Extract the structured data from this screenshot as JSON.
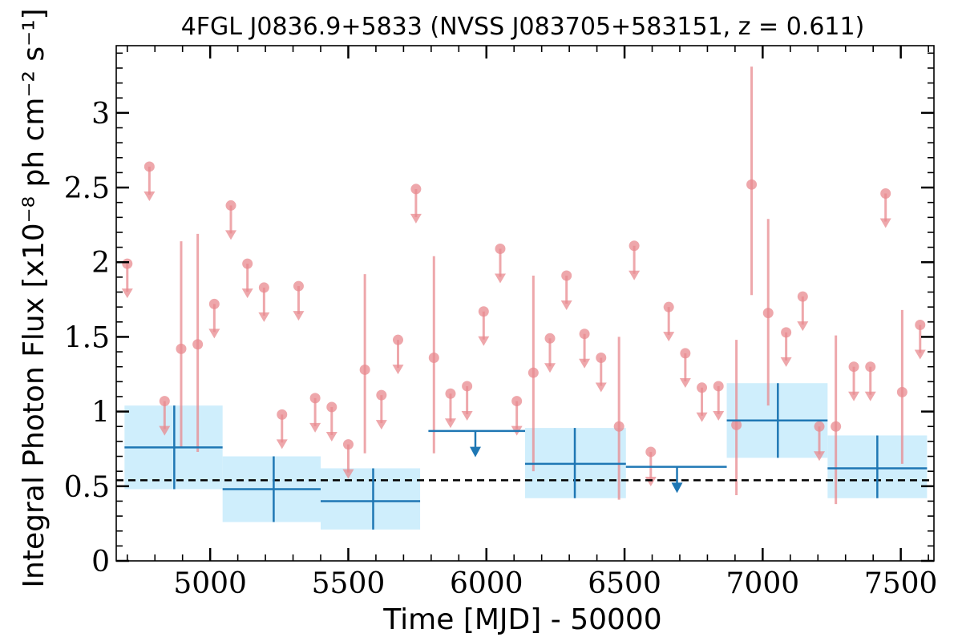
{
  "chart_data": {
    "type": "scatter",
    "title": "4FGL J0836.9+5833 (NVSS J083705+583151, z = 0.611)",
    "xlabel": "Time [MJD] - 50000",
    "ylabel": "Integral Photon Flux [x10⁻⁸ ph cm⁻² s⁻¹]",
    "xlim": [
      4660,
      7620
    ],
    "ylim": [
      0,
      3.45
    ],
    "x_ticks": [
      {
        "value": 5000,
        "label": "5000"
      },
      {
        "value": 5500,
        "label": "5500"
      },
      {
        "value": 6000,
        "label": "6000"
      },
      {
        "value": 6500,
        "label": "6500"
      },
      {
        "value": 7000,
        "label": "7000"
      },
      {
        "value": 7500,
        "label": "7500"
      }
    ],
    "y_ticks": [
      {
        "value": 0,
        "label": "0"
      },
      {
        "value": 0.5,
        "label": "0.5"
      },
      {
        "value": 1,
        "label": "1"
      },
      {
        "value": 1.5,
        "label": "1.5"
      },
      {
        "value": 2,
        "label": "2"
      },
      {
        "value": 2.5,
        "label": "2.5"
      },
      {
        "value": 3,
        "label": "3"
      }
    ],
    "reference_line": {
      "y": 0.54,
      "style": "dashed",
      "color": "#000000"
    },
    "short_bin_detections": [
      {
        "x": 4895,
        "y": 1.42,
        "low": 0.76,
        "high": 2.14
      },
      {
        "x": 4955,
        "y": 1.45,
        "low": 0.73,
        "high": 2.19
      },
      {
        "x": 5560,
        "y": 1.28,
        "low": 0.72,
        "high": 1.92
      },
      {
        "x": 5810,
        "y": 1.36,
        "low": 0.72,
        "high": 2.04
      },
      {
        "x": 6170,
        "y": 1.26,
        "low": 0.6,
        "high": 1.91
      },
      {
        "x": 6480,
        "y": 0.9,
        "low": 0.41,
        "high": 1.5
      },
      {
        "x": 6905,
        "y": 0.91,
        "low": 0.44,
        "high": 1.48
      },
      {
        "x": 6960,
        "y": 2.52,
        "low": 1.78,
        "high": 3.31
      },
      {
        "x": 7020,
        "y": 1.66,
        "low": 1.04,
        "high": 2.29
      },
      {
        "x": 7265,
        "y": 0.9,
        "low": 0.38,
        "high": 1.51
      },
      {
        "x": 7505,
        "y": 1.13,
        "low": 0.65,
        "high": 1.68
      }
    ],
    "short_bin_upper_limits": [
      {
        "x": 4700,
        "y": 1.99
      },
      {
        "x": 4780,
        "y": 2.64
      },
      {
        "x": 4835,
        "y": 1.07
      },
      {
        "x": 5015,
        "y": 1.72
      },
      {
        "x": 5075,
        "y": 2.38
      },
      {
        "x": 5135,
        "y": 1.99
      },
      {
        "x": 5195,
        "y": 1.83
      },
      {
        "x": 5260,
        "y": 0.98
      },
      {
        "x": 5320,
        "y": 1.84
      },
      {
        "x": 5380,
        "y": 1.09
      },
      {
        "x": 5440,
        "y": 1.03
      },
      {
        "x": 5500,
        "y": 0.78
      },
      {
        "x": 5620,
        "y": 1.11
      },
      {
        "x": 5680,
        "y": 1.48
      },
      {
        "x": 5745,
        "y": 2.49
      },
      {
        "x": 5870,
        "y": 1.12
      },
      {
        "x": 5930,
        "y": 1.17
      },
      {
        "x": 5990,
        "y": 1.67
      },
      {
        "x": 6050,
        "y": 2.09
      },
      {
        "x": 6110,
        "y": 1.07
      },
      {
        "x": 6230,
        "y": 1.49
      },
      {
        "x": 6290,
        "y": 1.91
      },
      {
        "x": 6355,
        "y": 1.52
      },
      {
        "x": 6415,
        "y": 1.36
      },
      {
        "x": 6535,
        "y": 2.11
      },
      {
        "x": 6595,
        "y": 0.73
      },
      {
        "x": 6660,
        "y": 1.7
      },
      {
        "x": 6720,
        "y": 1.39
      },
      {
        "x": 6780,
        "y": 1.16
      },
      {
        "x": 6840,
        "y": 1.17
      },
      {
        "x": 7085,
        "y": 1.53
      },
      {
        "x": 7145,
        "y": 1.77
      },
      {
        "x": 7205,
        "y": 0.9
      },
      {
        "x": 7330,
        "y": 1.3
      },
      {
        "x": 7390,
        "y": 1.3
      },
      {
        "x": 7445,
        "y": 2.46
      },
      {
        "x": 7570,
        "y": 1.58
      }
    ],
    "long_bin_detections": [
      {
        "x_start": 4690,
        "x_end": 5045,
        "x": 4870,
        "y": 0.76,
        "low": 0.48,
        "high": 1.04
      },
      {
        "x_start": 5045,
        "x_end": 5400,
        "x": 5230,
        "y": 0.48,
        "low": 0.26,
        "high": 0.7
      },
      {
        "x_start": 5400,
        "x_end": 5760,
        "x": 5590,
        "y": 0.4,
        "low": 0.21,
        "high": 0.62
      },
      {
        "x_start": 6140,
        "x_end": 6505,
        "x": 6320,
        "y": 0.65,
        "low": 0.42,
        "high": 0.89
      },
      {
        "x_start": 6870,
        "x_end": 7235,
        "x": 7055,
        "y": 0.94,
        "low": 0.69,
        "high": 1.19
      },
      {
        "x_start": 7235,
        "x_end": 7595,
        "x": 7415,
        "y": 0.62,
        "low": 0.42,
        "high": 0.84
      }
    ],
    "long_bin_upper_limits": [
      {
        "x_start": 5790,
        "x_end": 6140,
        "x": 5960,
        "y": 0.87
      },
      {
        "x_start": 6505,
        "x_end": 6870,
        "x": 6690,
        "y": 0.63
      }
    ],
    "colors": {
      "short_bin": "#e8898f",
      "long_bin_line": "#1f77b4",
      "long_bin_fill": "#cfeefc",
      "reference": "#000000"
    }
  }
}
